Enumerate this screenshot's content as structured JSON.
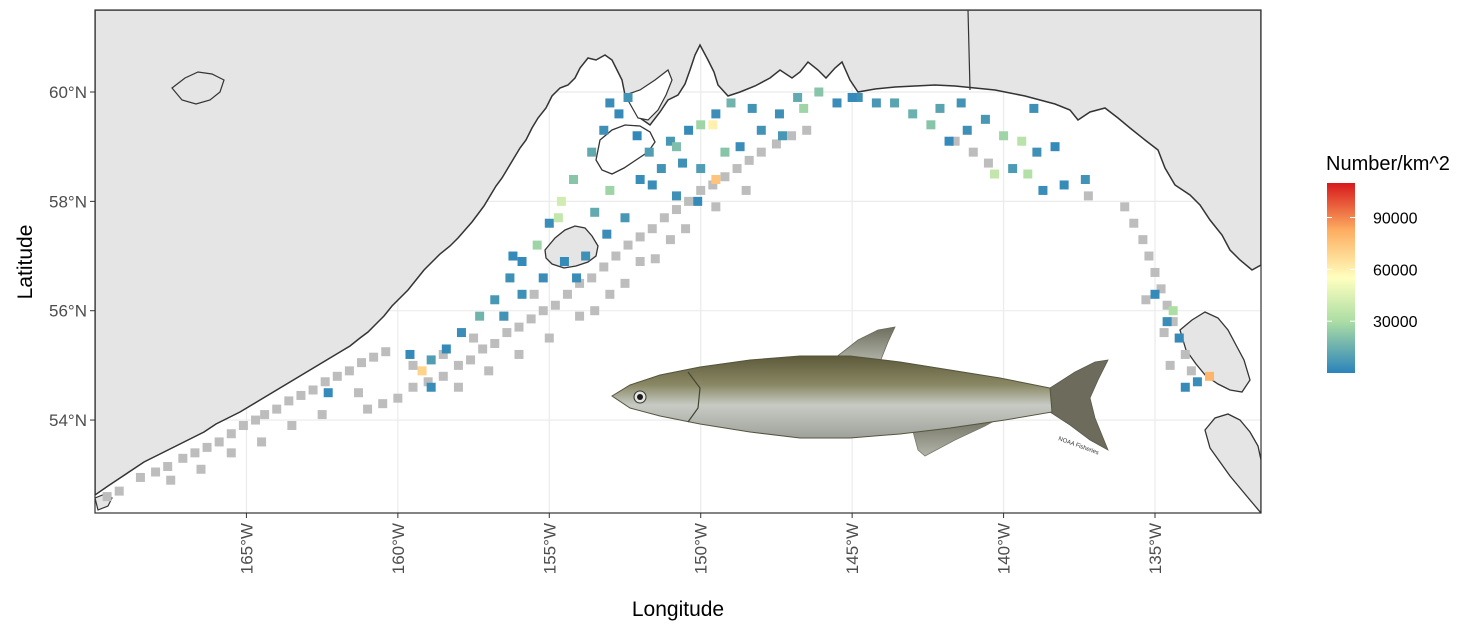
{
  "chart_data": {
    "type": "map",
    "xlabel": "Longitude",
    "ylabel": "Latitude",
    "xlim": [
      -170,
      -131.5
    ],
    "ylim": [
      52.3,
      61.5
    ],
    "x_ticks": [
      {
        "value": -165,
        "label": "165°W"
      },
      {
        "value": -160,
        "label": "160°W"
      },
      {
        "value": -155,
        "label": "155°W"
      },
      {
        "value": -150,
        "label": "150°W"
      },
      {
        "value": -145,
        "label": "145°W"
      },
      {
        "value": -140,
        "label": "140°W"
      },
      {
        "value": -135,
        "label": "135°W"
      }
    ],
    "y_ticks": [
      {
        "value": 54,
        "label": "54°N"
      },
      {
        "value": 56,
        "label": "56°N"
      },
      {
        "value": 58,
        "label": "58°N"
      },
      {
        "value": 60,
        "label": "60°N"
      }
    ],
    "grid": true,
    "legend": {
      "title": "Number/km^2",
      "position": "right",
      "min": 0,
      "max": 110000,
      "breaks": [
        {
          "value": 90000,
          "label": "90000"
        },
        {
          "value": 60000,
          "label": "60000"
        },
        {
          "value": 30000,
          "label": "30000"
        }
      ],
      "colors": [
        "#2b83ba",
        "#abdda4",
        "#ffffbf",
        "#fdae61",
        "#d7191c"
      ],
      "zero_color": "#bdbdbd"
    },
    "colors": {
      "land": "#e5e5e5",
      "coast": "#333333",
      "grid": "#ebebeb",
      "border": "#333333",
      "zero_station": "#bdbdbd"
    },
    "zero_stations": [
      [
        -169.6,
        52.6
      ],
      [
        -169.2,
        52.7
      ],
      [
        -168.5,
        52.95
      ],
      [
        -168,
        53.05
      ],
      [
        -167.6,
        53.15
      ],
      [
        -167.1,
        53.3
      ],
      [
        -166.7,
        53.4
      ],
      [
        -166.3,
        53.5
      ],
      [
        -165.9,
        53.6
      ],
      [
        -165.5,
        53.75
      ],
      [
        -165.1,
        53.9
      ],
      [
        -164.7,
        54.0
      ],
      [
        -164.4,
        54.1
      ],
      [
        -164.0,
        54.2
      ],
      [
        -163.6,
        54.35
      ],
      [
        -163.2,
        54.45
      ],
      [
        -162.8,
        54.55
      ],
      [
        -162.4,
        54.7
      ],
      [
        -162.0,
        54.8
      ],
      [
        -161.6,
        54.9
      ],
      [
        -161.2,
        55.05
      ],
      [
        -160.8,
        55.15
      ],
      [
        -160.4,
        55.25
      ],
      [
        -160.0,
        54.4
      ],
      [
        -160.5,
        54.3
      ],
      [
        -161.3,
        54.5
      ],
      [
        -159.5,
        54.6
      ],
      [
        -159.0,
        54.7
      ],
      [
        -158.5,
        54.8
      ],
      [
        -158.0,
        55.0
      ],
      [
        -157.6,
        55.1
      ],
      [
        -157.2,
        55.3
      ],
      [
        -156.8,
        55.4
      ],
      [
        -156.4,
        55.6
      ],
      [
        -156.0,
        55.7
      ],
      [
        -155.6,
        55.85
      ],
      [
        -155.2,
        56.0
      ],
      [
        -154.8,
        56.1
      ],
      [
        -154.4,
        56.3
      ],
      [
        -154.0,
        56.5
      ],
      [
        -153.6,
        56.6
      ],
      [
        -153.2,
        56.8
      ],
      [
        -152.8,
        57.0
      ],
      [
        -152.4,
        57.2
      ],
      [
        -152.0,
        57.35
      ],
      [
        -151.6,
        57.5
      ],
      [
        -151.2,
        57.7
      ],
      [
        -150.8,
        57.85
      ],
      [
        -150.4,
        58.0
      ],
      [
        -150.0,
        58.2
      ],
      [
        -149.6,
        58.3
      ],
      [
        -149.2,
        58.45
      ],
      [
        -148.8,
        58.6
      ],
      [
        -148.4,
        58.75
      ],
      [
        -148.0,
        58.9
      ],
      [
        -147.5,
        59.05
      ],
      [
        -147.0,
        59.2
      ],
      [
        -146.5,
        59.3
      ],
      [
        -151.0,
        57.3
      ],
      [
        -152.0,
        56.9
      ],
      [
        -153.0,
        56.3
      ],
      [
        -154.0,
        55.9
      ],
      [
        -155.0,
        55.5
      ],
      [
        -156.0,
        55.2
      ],
      [
        -157.0,
        54.9
      ],
      [
        -158.0,
        54.6
      ],
      [
        -153.5,
        56.0
      ],
      [
        -152.5,
        56.5
      ],
      [
        -151.5,
        56.95
      ],
      [
        -150.5,
        57.5
      ],
      [
        -149.5,
        57.9
      ],
      [
        -148.5,
        58.2
      ],
      [
        -155.5,
        56.3
      ],
      [
        -156.5,
        55.9
      ],
      [
        -157.5,
        55.5
      ],
      [
        -158.5,
        55.2
      ],
      [
        -159.5,
        55.0
      ],
      [
        -161.0,
        54.2
      ],
      [
        -162.5,
        54.1
      ],
      [
        -163.5,
        53.9
      ],
      [
        -164.5,
        53.6
      ],
      [
        -165.5,
        53.4
      ],
      [
        -166.5,
        53.1
      ],
      [
        -167.5,
        52.9
      ],
      [
        -136.0,
        57.9
      ],
      [
        -135.7,
        57.6
      ],
      [
        -135.4,
        57.3
      ],
      [
        -135.2,
        57.0
      ],
      [
        -135.0,
        56.7
      ],
      [
        -134.8,
        56.4
      ],
      [
        -134.6,
        56.1
      ],
      [
        -134.4,
        55.8
      ],
      [
        -134.2,
        55.5
      ],
      [
        -134.0,
        55.2
      ],
      [
        -133.8,
        54.9
      ],
      [
        -134.5,
        55.0
      ],
      [
        -134.7,
        55.6
      ],
      [
        -135.3,
        56.2
      ],
      [
        -140.5,
        58.7
      ],
      [
        -141.0,
        58.9
      ],
      [
        -141.6,
        59.1
      ],
      [
        -137.2,
        58.1
      ]
    ],
    "stations": [
      [
        -153.0,
        59.8,
        3000
      ],
      [
        -152.4,
        59.9,
        5000
      ],
      [
        -152.7,
        59.6,
        2000
      ],
      [
        -153.2,
        59.3,
        4000
      ],
      [
        -152.1,
        59.2,
        1500
      ],
      [
        -151.7,
        58.9,
        8000
      ],
      [
        -151.0,
        59.1,
        6000
      ],
      [
        -150.4,
        59.3,
        2500
      ],
      [
        -149.5,
        59.6,
        3500
      ],
      [
        -149.0,
        59.8,
        15000
      ],
      [
        -148.3,
        59.7,
        5000
      ],
      [
        -147.4,
        59.6,
        4000
      ],
      [
        -146.8,
        59.9,
        12000
      ],
      [
        -146.1,
        60.0,
        20000
      ],
      [
        -145.5,
        59.8,
        3000
      ],
      [
        -144.8,
        59.9,
        4000
      ],
      [
        -144.2,
        59.8,
        6000
      ],
      [
        -143.6,
        59.8,
        10000
      ],
      [
        -143.0,
        59.6,
        14000
      ],
      [
        -142.4,
        59.4,
        20000
      ],
      [
        -141.8,
        59.1,
        2000
      ],
      [
        -141.2,
        59.3,
        4000
      ],
      [
        -140.6,
        59.5,
        6000
      ],
      [
        -140.0,
        59.2,
        25000
      ],
      [
        -139.4,
        59.1,
        32000
      ],
      [
        -138.9,
        58.9,
        4000
      ],
      [
        -138.3,
        59.0,
        2000
      ],
      [
        -139.7,
        58.6,
        7000
      ],
      [
        -139.2,
        58.5,
        30000
      ],
      [
        -138.7,
        58.2,
        3000
      ],
      [
        -138.0,
        58.3,
        2500
      ],
      [
        -137.3,
        58.4,
        5000
      ],
      [
        -153.6,
        58.9,
        12000
      ],
      [
        -154.2,
        58.4,
        20000
      ],
      [
        -154.6,
        58.0,
        40000
      ],
      [
        -155.0,
        57.6,
        3000
      ],
      [
        -155.4,
        57.2,
        25000
      ],
      [
        -155.9,
        56.9,
        2000
      ],
      [
        -156.3,
        56.6,
        4000
      ],
      [
        -156.8,
        56.2,
        6000
      ],
      [
        -157.3,
        55.9,
        15000
      ],
      [
        -157.9,
        55.6,
        3000
      ],
      [
        -158.4,
        55.3,
        2000
      ],
      [
        -158.9,
        55.1,
        8000
      ],
      [
        -159.2,
        54.9,
        70000
      ],
      [
        -159.6,
        55.2,
        2000
      ],
      [
        -158.9,
        54.6,
        3000
      ],
      [
        -162.3,
        54.5,
        2000
      ],
      [
        -152.0,
        58.4,
        3000
      ],
      [
        -151.3,
        58.6,
        5000
      ],
      [
        -150.6,
        58.7,
        4000
      ],
      [
        -150.0,
        58.6,
        8000
      ],
      [
        -149.5,
        58.4,
        75000
      ],
      [
        -149.2,
        58.9,
        20000
      ],
      [
        -148.7,
        59.0,
        3000
      ],
      [
        -148.0,
        59.3,
        5000
      ],
      [
        -147.3,
        59.2,
        6000
      ],
      [
        -150.1,
        58.0,
        2000
      ],
      [
        -150.8,
        58.1,
        4000
      ],
      [
        -151.6,
        58.3,
        3000
      ],
      [
        -152.5,
        57.7,
        6000
      ],
      [
        -153.1,
        57.4,
        3000
      ],
      [
        -153.8,
        57.0,
        4000
      ],
      [
        -154.5,
        56.9,
        2000
      ],
      [
        -155.2,
        56.6,
        3000
      ],
      [
        -155.9,
        56.3,
        4000
      ],
      [
        -156.5,
        55.9,
        5000
      ],
      [
        -154.7,
        57.7,
        35000
      ],
      [
        -153.5,
        57.8,
        12000
      ],
      [
        -153.0,
        58.2,
        25000
      ],
      [
        -154.1,
        56.6,
        3000
      ],
      [
        -156.2,
        57.0,
        2000
      ],
      [
        -150.0,
        59.4,
        25000
      ],
      [
        -149.6,
        59.4,
        60000
      ],
      [
        -150.8,
        59.0,
        18000
      ],
      [
        -135.0,
        56.3,
        2000
      ],
      [
        -134.6,
        55.8,
        3000
      ],
      [
        -134.2,
        55.5,
        2000
      ],
      [
        -133.6,
        54.7,
        3000
      ],
      [
        -134.0,
        54.6,
        2500
      ],
      [
        -133.2,
        54.8,
        80000
      ],
      [
        -134.4,
        56.0,
        28000
      ],
      [
        -140.3,
        58.5,
        35000
      ],
      [
        -141.4,
        59.8,
        5000
      ],
      [
        -145.0,
        59.9,
        2000
      ],
      [
        -146.6,
        59.7,
        25000
      ],
      [
        -142.1,
        59.7,
        10000
      ],
      [
        -139.0,
        59.7,
        4000
      ]
    ]
  },
  "photo_credit": "NOAA Fisheries"
}
